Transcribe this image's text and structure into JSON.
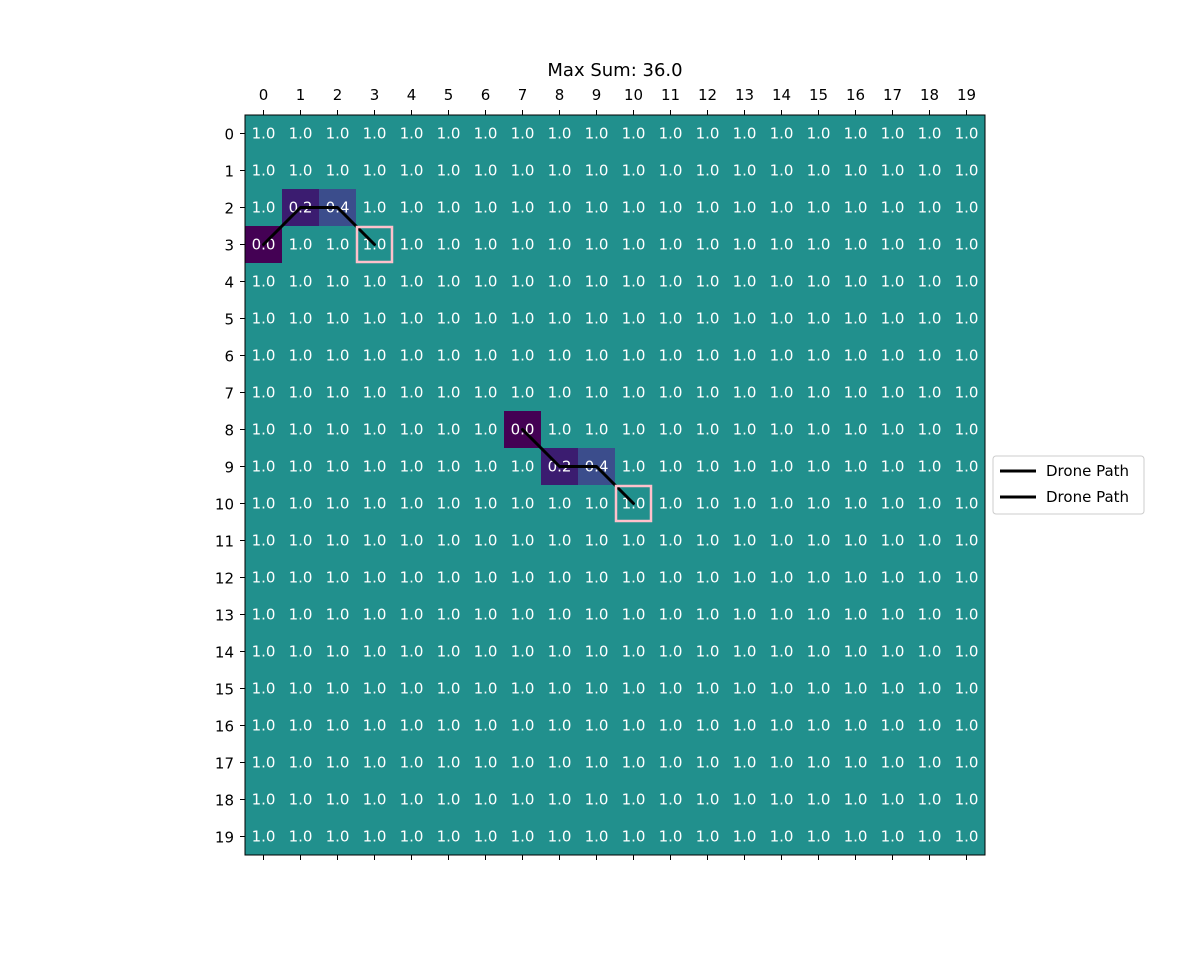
{
  "chart_data": {
    "type": "heatmap",
    "title": "Max Sum: 36.0",
    "rows": 20,
    "cols": 20,
    "x_ticks": [
      "0",
      "1",
      "2",
      "3",
      "4",
      "5",
      "6",
      "7",
      "8",
      "9",
      "10",
      "11",
      "12",
      "13",
      "14",
      "15",
      "16",
      "17",
      "18",
      "19"
    ],
    "y_ticks": [
      "0",
      "1",
      "2",
      "3",
      "4",
      "5",
      "6",
      "7",
      "8",
      "9",
      "10",
      "11",
      "12",
      "13",
      "14",
      "15",
      "16",
      "17",
      "18",
      "19"
    ],
    "x_tick_position": "top",
    "default_value": 1.0,
    "default_value_label": "1.0",
    "special_cells": [
      {
        "row": 2,
        "col": 1,
        "value": 0.2,
        "label": "0.2"
      },
      {
        "row": 2,
        "col": 2,
        "value": 0.4,
        "label": "0.4"
      },
      {
        "row": 3,
        "col": 0,
        "value": 0.0,
        "label": "0.0"
      },
      {
        "row": 8,
        "col": 7,
        "value": 0.0,
        "label": "0.0"
      },
      {
        "row": 9,
        "col": 8,
        "value": 0.2,
        "label": "0.2"
      },
      {
        "row": 9,
        "col": 9,
        "value": 0.4,
        "label": "0.4"
      }
    ],
    "colormap": "viridis",
    "color_scale": [
      {
        "value": 0.0,
        "color": "#440154"
      },
      {
        "value": 0.2,
        "color": "#3b1c70"
      },
      {
        "value": 0.4,
        "color": "#3b4d8c"
      },
      {
        "value": 1.0,
        "color": "#21908d"
      }
    ],
    "series": [
      {
        "name": "Drone Path",
        "color": "#000000",
        "points": [
          {
            "row": 3,
            "col": 0
          },
          {
            "row": 2,
            "col": 1
          },
          {
            "row": 2,
            "col": 2
          },
          {
            "row": 3,
            "col": 3
          }
        ],
        "highlight_cell": {
          "row": 3,
          "col": 3
        }
      },
      {
        "name": "Drone Path",
        "color": "#000000",
        "points": [
          {
            "row": 8,
            "col": 7
          },
          {
            "row": 9,
            "col": 8
          },
          {
            "row": 9,
            "col": 9
          },
          {
            "row": 10,
            "col": 10
          }
        ],
        "highlight_cell": {
          "row": 10,
          "col": 10
        }
      }
    ],
    "highlight_color": "#ffc0cb",
    "legend": {
      "placement": "center-right",
      "entries": [
        "Drone Path",
        "Drone Path"
      ]
    }
  }
}
